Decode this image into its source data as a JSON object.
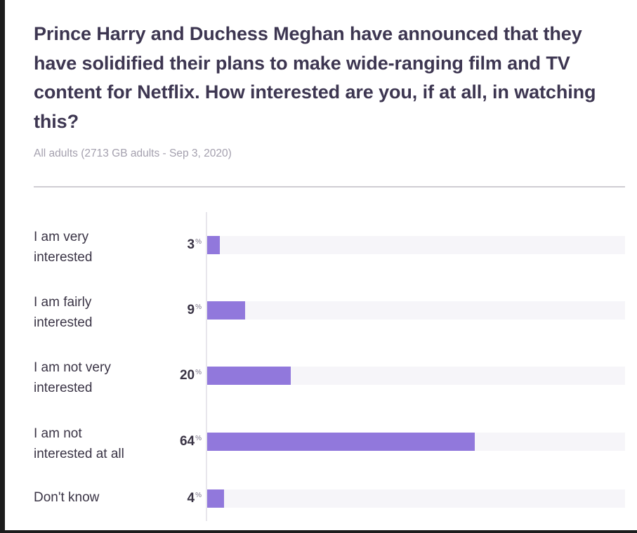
{
  "chart_data": {
    "type": "bar",
    "orientation": "horizontal",
    "title": "Prince Harry and Duchess Meghan have announced that they have solidified their plans to make wide-ranging film and TV content for Netflix. How interested are you, if at all, in watching this?",
    "subtitle": "All adults (2713 GB adults - Sep 3, 2020)",
    "categories": [
      "I am very interested",
      "I am fairly interested",
      "I am not very interested",
      "I am not interested at all",
      "Don't know"
    ],
    "values": [
      3,
      9,
      20,
      64,
      4
    ],
    "unit": "%",
    "xlim": [
      0,
      100
    ],
    "colors": {
      "bar": "#9178dc",
      "track": "#f6f5f9"
    }
  }
}
